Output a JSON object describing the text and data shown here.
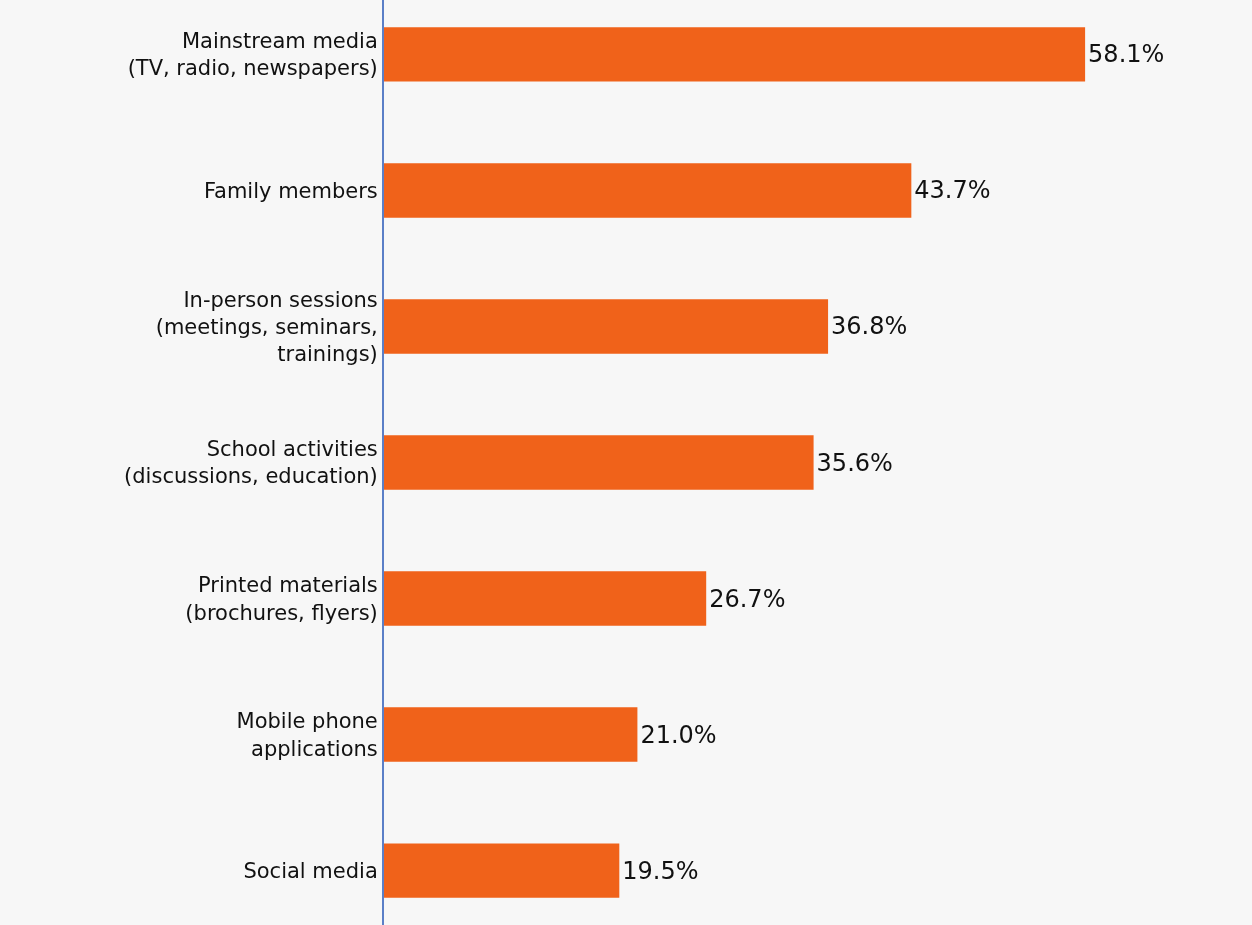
{
  "chart_data": {
    "type": "bar",
    "orientation": "horizontal",
    "categories": [
      "Mainstream media\n(TV, radio, newspapers)",
      "Family members",
      "In-person sessions\n(meetings, seminars,\ntrainings)",
      "School activities\n(discussions, education)",
      "Printed materials\n(brochures, flyers)",
      "Mobile phone\napplications",
      "Social media"
    ],
    "values": [
      58.1,
      43.7,
      36.8,
      35.6,
      26.7,
      21.0,
      19.5
    ],
    "value_labels": [
      "58.1%",
      "43.7%",
      "36.8%",
      "35.6%",
      "26.7%",
      "21.0%",
      "19.5%"
    ],
    "color": "#f0621a",
    "grid": false,
    "legend": false
  }
}
